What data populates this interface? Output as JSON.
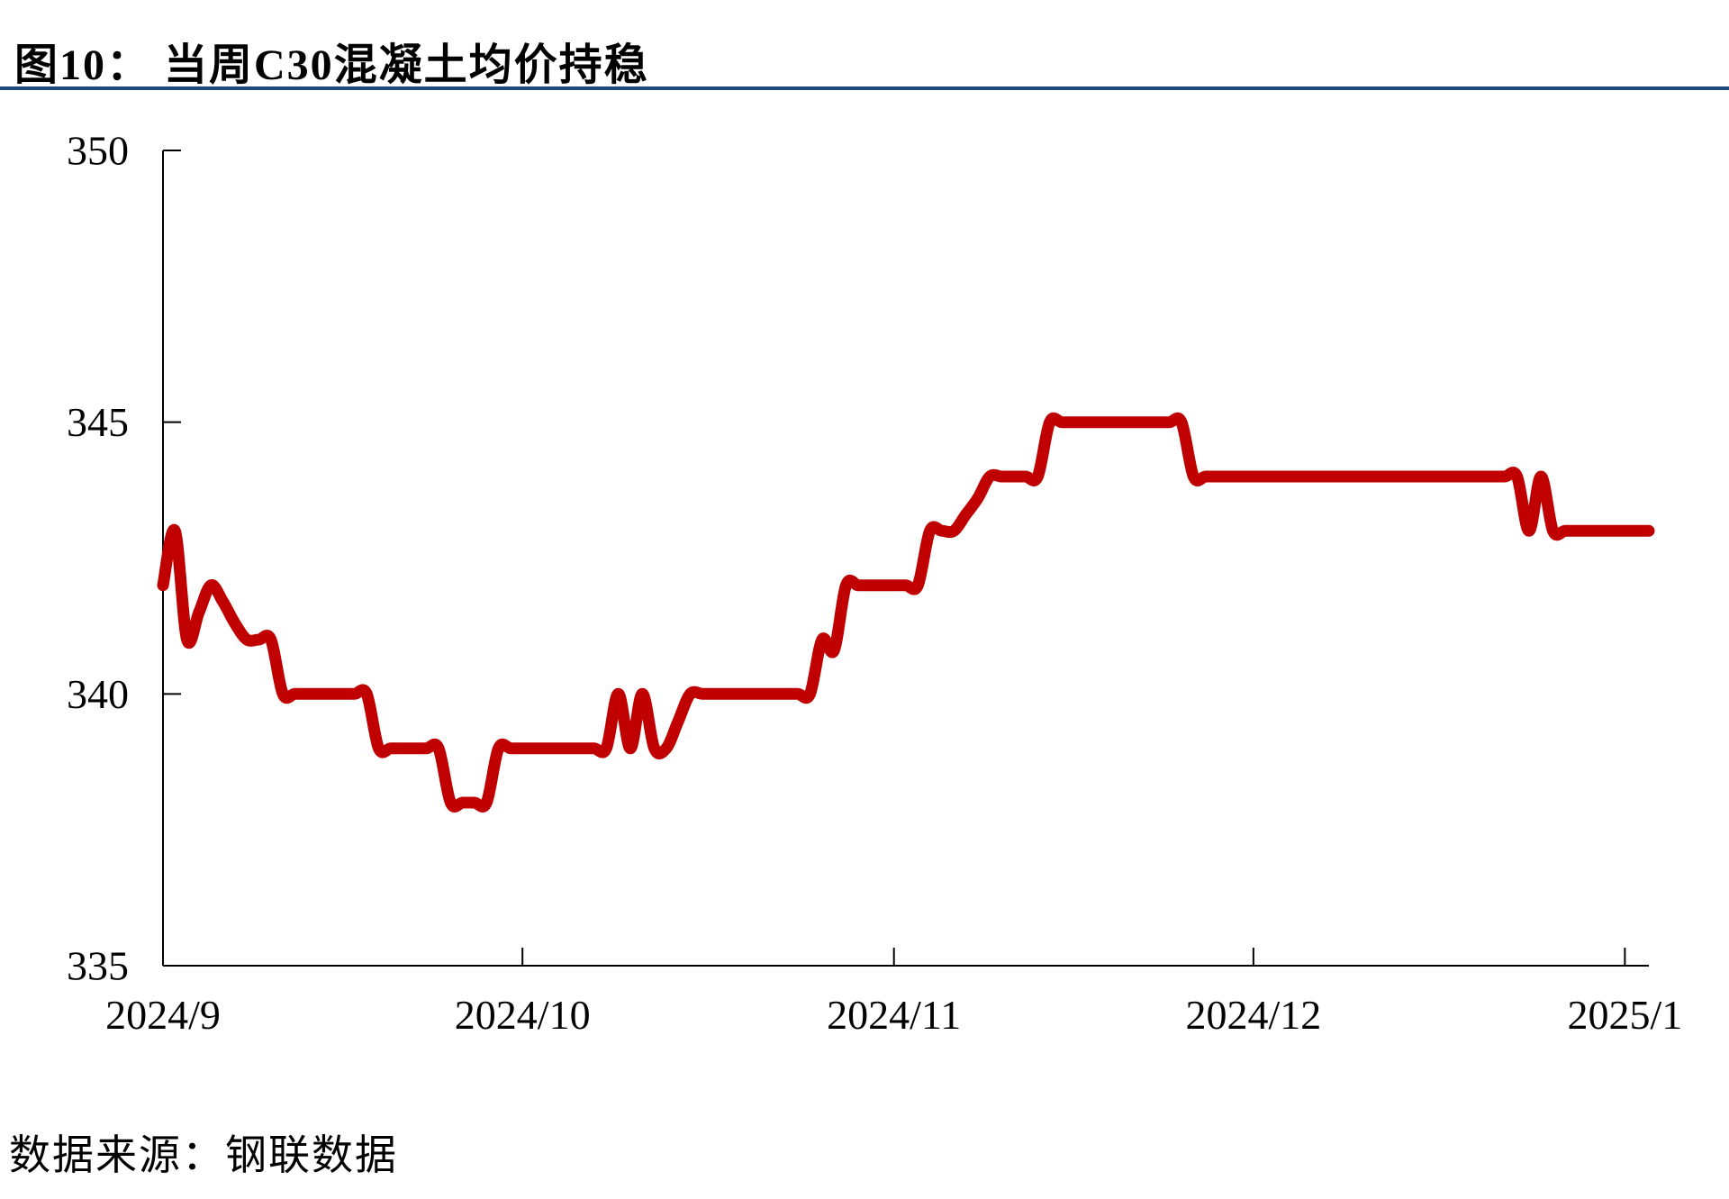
{
  "page": {
    "title": "图10： 当周C30混凝土均价持稳",
    "source": "数据来源：钢联数据",
    "accent_rule_color": "#1F497D"
  },
  "chart_data": {
    "type": "line",
    "title": "当周C30混凝土均价持稳",
    "xlabel": "",
    "ylabel": "",
    "ylim": [
      335,
      350
    ],
    "y_ticks": [
      350,
      345,
      340,
      335
    ],
    "x_ticks": [
      {
        "label": "2024/9",
        "date": "2024/9/1"
      },
      {
        "label": "2024/10",
        "date": "2024/10/1"
      },
      {
        "label": "2024/11",
        "date": "2024/11/1"
      },
      {
        "label": "2024/12",
        "date": "2024/12/1"
      },
      {
        "label": "2025/1",
        "date": "2025/1/1"
      }
    ],
    "x_range": [
      "2024/9/1",
      "2025/1/3"
    ],
    "grid": false,
    "legend_position": "none",
    "axis_color": "#000000",
    "series": [
      {
        "name": "C30混凝土均价",
        "color": "#C00000",
        "dates": [
          "2024/9/1",
          "2024/9/2",
          "2024/9/3",
          "2024/9/4",
          "2024/9/5",
          "2024/9/6",
          "2024/9/7",
          "2024/9/8",
          "2024/9/9",
          "2024/9/10",
          "2024/9/11",
          "2024/9/12",
          "2024/9/13",
          "2024/9/14",
          "2024/9/15",
          "2024/9/16",
          "2024/9/17",
          "2024/9/18",
          "2024/9/19",
          "2024/9/20",
          "2024/9/21",
          "2024/9/22",
          "2024/9/23",
          "2024/9/24",
          "2024/9/25",
          "2024/9/26",
          "2024/9/27",
          "2024/9/28",
          "2024/9/29",
          "2024/9/30",
          "2024/10/1",
          "2024/10/2",
          "2024/10/3",
          "2024/10/4",
          "2024/10/5",
          "2024/10/6",
          "2024/10/7",
          "2024/10/8",
          "2024/10/9",
          "2024/10/10",
          "2024/10/11",
          "2024/10/12",
          "2024/10/13",
          "2024/10/14",
          "2024/10/15",
          "2024/10/16",
          "2024/10/17",
          "2024/10/18",
          "2024/10/19",
          "2024/10/20",
          "2024/10/21",
          "2024/10/22",
          "2024/10/23",
          "2024/10/24",
          "2024/10/25",
          "2024/10/26",
          "2024/10/27",
          "2024/10/28",
          "2024/10/29",
          "2024/10/30",
          "2024/10/31",
          "2024/11/1",
          "2024/11/2",
          "2024/11/3",
          "2024/11/4",
          "2024/11/5",
          "2024/11/6",
          "2024/11/7",
          "2024/11/8",
          "2024/11/9",
          "2024/11/10",
          "2024/11/11",
          "2024/11/12",
          "2024/11/13",
          "2024/11/14",
          "2024/11/15",
          "2024/11/16",
          "2024/11/17",
          "2024/11/18",
          "2024/11/19",
          "2024/11/20",
          "2024/11/21",
          "2024/11/22",
          "2024/11/23",
          "2024/11/24",
          "2024/11/25",
          "2024/11/26",
          "2024/11/27",
          "2024/11/28",
          "2024/11/29",
          "2024/11/30",
          "2024/12/1",
          "2024/12/2",
          "2024/12/3",
          "2024/12/4",
          "2024/12/5",
          "2024/12/6",
          "2024/12/7",
          "2024/12/8",
          "2024/12/9",
          "2024/12/10",
          "2024/12/11",
          "2024/12/12",
          "2024/12/13",
          "2024/12/14",
          "2024/12/15",
          "2024/12/16",
          "2024/12/17",
          "2024/12/18",
          "2024/12/19",
          "2024/12/20",
          "2024/12/21",
          "2024/12/22",
          "2024/12/23",
          "2024/12/24",
          "2024/12/25",
          "2024/12/26",
          "2024/12/27",
          "2024/12/28",
          "2024/12/29",
          "2024/12/30",
          "2024/12/31",
          "2025/1/1",
          "2025/1/2",
          "2025/1/3"
        ],
        "values": [
          342,
          343,
          341,
          341.5,
          342,
          341.7,
          341.3,
          341,
          341,
          341,
          340,
          340,
          340,
          340,
          340,
          340,
          340,
          340,
          339,
          339,
          339,
          339,
          339,
          339,
          338,
          338,
          338,
          338,
          339,
          339,
          339,
          339,
          339,
          339,
          339,
          339,
          339,
          339,
          340,
          339,
          340,
          339,
          339,
          339.5,
          340,
          340,
          340,
          340,
          340,
          340,
          340,
          340,
          340,
          340,
          340,
          341,
          340.8,
          342,
          342,
          342,
          342,
          342,
          342,
          342,
          343,
          343,
          343,
          343.3,
          343.6,
          344,
          344,
          344,
          344,
          344,
          345,
          345,
          345,
          345,
          345,
          345,
          345,
          345,
          345,
          345,
          345,
          345,
          344,
          344,
          344,
          344,
          344,
          344,
          344,
          344,
          344,
          344,
          344,
          344,
          344,
          344,
          344,
          344,
          344,
          344,
          344,
          344,
          344,
          344,
          344,
          344,
          344,
          344,
          344,
          344,
          343,
          344,
          343,
          343,
          343,
          343,
          343,
          343,
          343,
          343,
          343
        ]
      }
    ]
  }
}
